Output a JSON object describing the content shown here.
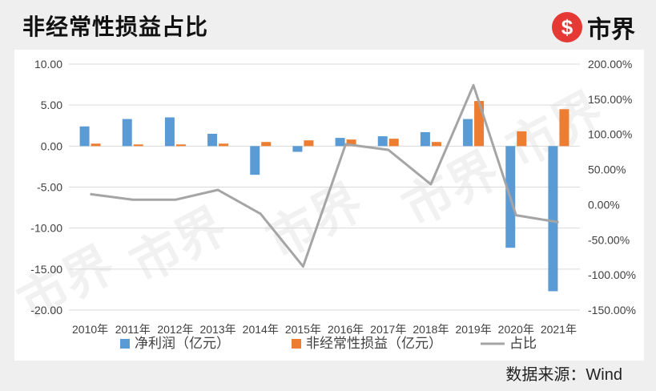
{
  "title": "非经常性损益占比",
  "logo": {
    "mark": "$",
    "text": "市界"
  },
  "watermark_text": "市界",
  "source": "数据来源：Wind",
  "colors": {
    "net_profit": "#5b9bd5",
    "non_recurring": "#ed7d31",
    "ratio": "#a5a5a5"
  },
  "chart_data": {
    "type": "bar",
    "categories": [
      "2010年",
      "2011年",
      "2012年",
      "2013年",
      "2014年",
      "2015年",
      "2016年",
      "2017年",
      "2018年",
      "2019年",
      "2020年",
      "2021年"
    ],
    "series": [
      {
        "name": "净利润（亿元）",
        "type": "bar",
        "axis": "left",
        "values": [
          2.4,
          3.3,
          3.5,
          1.5,
          -3.5,
          -0.7,
          1.0,
          1.2,
          1.7,
          3.3,
          -12.4,
          -17.7
        ]
      },
      {
        "name": "非经常性损益（亿元）",
        "type": "bar",
        "axis": "right_bar",
        "values": [
          0.3,
          0.2,
          0.2,
          0.3,
          0.5,
          0.7,
          0.8,
          0.9,
          0.5,
          5.5,
          1.8,
          4.5
        ]
      },
      {
        "name": "占比",
        "type": "line",
        "axis": "right",
        "values": [
          15,
          7,
          7,
          21,
          -13,
          -88,
          86,
          78,
          29,
          170,
          -15,
          -25
        ]
      }
    ],
    "y_left": {
      "min": -20,
      "max": 10,
      "ticks": [
        "-20.00",
        "-15.00",
        "-10.00",
        "-5.00",
        "0.00",
        "5.00",
        "10.00"
      ]
    },
    "y_right": {
      "min": -150,
      "max": 200,
      "ticks": [
        "-150.00%",
        "-100.00%",
        "-50.00%",
        "0.00%",
        "50.00%",
        "100.00%",
        "150.00%",
        "200.00%"
      ]
    },
    "grid": true,
    "legend_position": "bottom"
  }
}
